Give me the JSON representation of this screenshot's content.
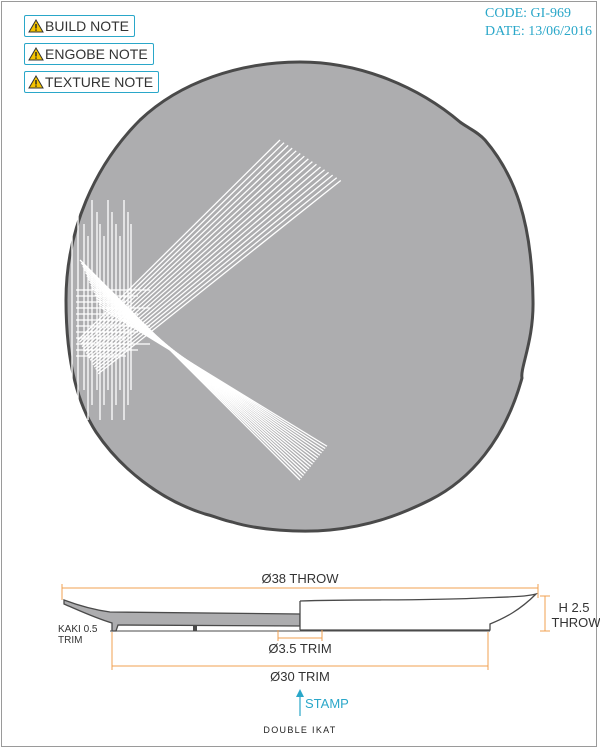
{
  "notes": [
    {
      "label": "BUILD NOTE",
      "icon": "warning-icon"
    },
    {
      "label": "ENGOBE NOTE",
      "icon": "warning-icon"
    },
    {
      "label": "TEXTURE NOTE",
      "icon": "warning-icon"
    }
  ],
  "header": {
    "code": "CODE: GI-969",
    "date": "DATE: 13/06/2016"
  },
  "section": {
    "throw_dim": "Ø38 THROW",
    "height_line1": "H 2.5",
    "height_line2": "THROW",
    "kaki_line1": "KAKI 0.5",
    "kaki_line2": "TRIM",
    "inner_trim": "Ø3.5 TRIM",
    "outer_trim": "Ø30 TRIM",
    "stamp": "STAMP"
  },
  "logo": {
    "text": "DOUBLE IKAT"
  },
  "colors": {
    "plate_fill": "#adadaf",
    "plate_stroke": "#4a4a4a",
    "glaze_lines": "#ffffff",
    "dimension_orange": "#f0a050",
    "accent_blue": "#2aa7c9"
  }
}
